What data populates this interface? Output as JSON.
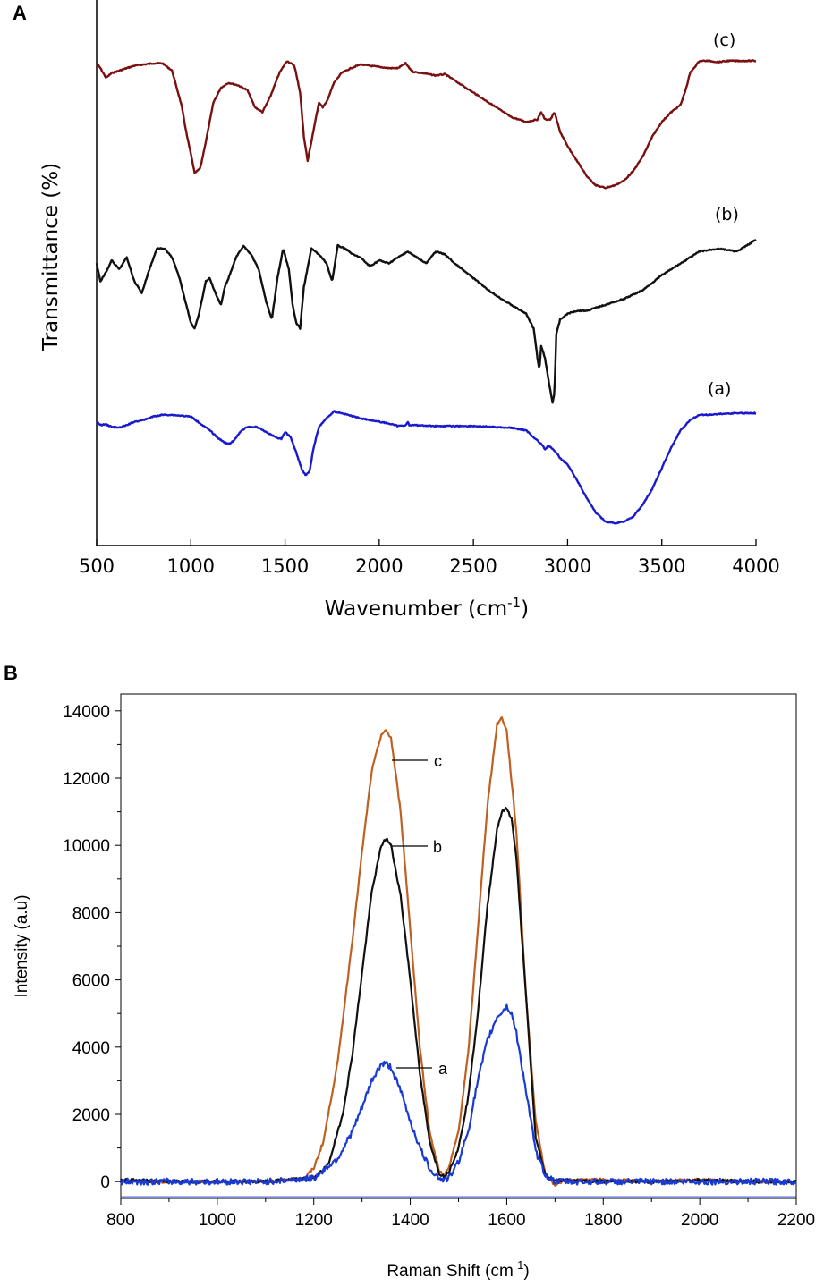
{
  "chart_data": [
    {
      "type": "line",
      "panel_label": "A",
      "xlabel": "Wavenumber (cm",
      "xlabel_sup": "-1",
      "xlabel_end": ")",
      "ylabel": "Transmittance (%)",
      "xlim": [
        500,
        4000
      ],
      "xticks": [
        500,
        1000,
        1500,
        2000,
        2500,
        3000,
        3500,
        4000
      ],
      "yticks_shown": false,
      "grid": false,
      "series": [
        {
          "name": "(c)",
          "color": "#7a1010",
          "x": [
            500,
            520,
            550,
            580,
            620,
            660,
            700,
            750,
            800,
            850,
            900,
            950,
            980,
            1000,
            1020,
            1050,
            1080,
            1120,
            1160,
            1200,
            1250,
            1300,
            1340,
            1380,
            1420,
            1470,
            1510,
            1550,
            1580,
            1600,
            1620,
            1650,
            1680,
            1700,
            1720,
            1760,
            1800,
            1850,
            1900,
            1950,
            2000,
            2050,
            2100,
            2140,
            2160,
            2180,
            2230,
            2300,
            2350,
            2400,
            2500,
            2600,
            2700,
            2780,
            2840,
            2860,
            2880,
            2910,
            2930,
            2960,
            3000,
            3050,
            3100,
            3150,
            3200,
            3250,
            3300,
            3350,
            3400,
            3450,
            3500,
            3550,
            3600,
            3630,
            3650,
            3700,
            3750,
            3800,
            3850,
            3900,
            4000
          ],
          "y": [
            90,
            88,
            84,
            86,
            87,
            88,
            89,
            89.5,
            90,
            90,
            87,
            73,
            60,
            53,
            45,
            47,
            58,
            74,
            80,
            82,
            81,
            79,
            72,
            70,
            76,
            86,
            91,
            89,
            78,
            60,
            50,
            62,
            74,
            72,
            74,
            82,
            86,
            88,
            89.5,
            89,
            88.5,
            88,
            88,
            90,
            88,
            86.5,
            86,
            85,
            85.5,
            83,
            78,
            73,
            68,
            66,
            67,
            70,
            67,
            67,
            70,
            62,
            56,
            50,
            44,
            40,
            39,
            40,
            42,
            46,
            52,
            60,
            66,
            70,
            73,
            80,
            86,
            91,
            91,
            90.5,
            91,
            91,
            91
          ]
        },
        {
          "name": "(b)",
          "color": "#111111",
          "x": [
            500,
            520,
            550,
            580,
            620,
            660,
            700,
            740,
            780,
            820,
            860,
            900,
            940,
            980,
            1000,
            1020,
            1040,
            1060,
            1080,
            1100,
            1130,
            1160,
            1180,
            1200,
            1240,
            1280,
            1320,
            1360,
            1400,
            1430,
            1460,
            1490,
            1520,
            1540,
            1560,
            1580,
            1600,
            1640,
            1680,
            1720,
            1750,
            1780,
            1820,
            1860,
            1900,
            1950,
            2000,
            2050,
            2100,
            2150,
            2200,
            2250,
            2300,
            2350,
            2400,
            2500,
            2600,
            2700,
            2780,
            2820,
            2840,
            2850,
            2860,
            2880,
            2900,
            2920,
            2930,
            2940,
            2960,
            2980,
            3000,
            3050,
            3100,
            3150,
            3200,
            3300,
            3400,
            3500,
            3600,
            3700,
            3800,
            3900,
            4000
          ],
          "y": [
            50,
            44,
            47,
            51,
            48,
            52,
            44,
            40,
            48,
            55,
            55,
            52,
            45,
            35,
            30,
            28,
            32,
            38,
            44,
            45,
            40,
            36,
            42,
            45,
            52,
            56,
            53,
            48,
            37,
            31,
            45,
            55,
            48,
            36,
            30,
            28,
            42,
            55,
            53,
            50,
            44,
            56,
            55,
            53,
            52,
            49,
            51,
            50,
            52,
            54,
            52,
            50,
            54,
            53,
            50,
            45,
            40,
            36,
            33,
            28,
            18,
            14,
            22,
            18,
            10,
            3,
            6,
            26,
            31,
            32,
            33,
            34,
            34,
            35,
            36,
            38,
            41,
            46,
            50,
            54,
            55,
            54,
            58
          ]
        },
        {
          "name": "(a)",
          "color": "#1a1acc",
          "x": [
            500,
            520,
            550,
            580,
            620,
            660,
            700,
            750,
            800,
            850,
            900,
            950,
            1000,
            1050,
            1100,
            1150,
            1180,
            1200,
            1230,
            1260,
            1300,
            1350,
            1400,
            1450,
            1480,
            1500,
            1530,
            1560,
            1590,
            1610,
            1630,
            1650,
            1680,
            1720,
            1760,
            1800,
            1850,
            1900,
            2000,
            2050,
            2100,
            2140,
            2150,
            2160,
            2200,
            2300,
            2400,
            2500,
            2600,
            2700,
            2780,
            2840,
            2860,
            2880,
            2900,
            2940,
            2960,
            3000,
            3050,
            3100,
            3150,
            3200,
            3250,
            3300,
            3350,
            3400,
            3450,
            3500,
            3550,
            3600,
            3650,
            3700,
            3750,
            3800,
            3900,
            4000
          ],
          "y": [
            68,
            66,
            66.5,
            65,
            64.5,
            66,
            68,
            69,
            71,
            72,
            72,
            71.5,
            71,
            67,
            63,
            58,
            56,
            55,
            57,
            62,
            65,
            65,
            62,
            59,
            58,
            62,
            59,
            50,
            40,
            37,
            39,
            52,
            65,
            70,
            74,
            73,
            71.5,
            70,
            68,
            67,
            65.5,
            66,
            68,
            66,
            66,
            65.5,
            65.5,
            65.5,
            65,
            64.5,
            63,
            57,
            55,
            52,
            54,
            50,
            47,
            43,
            34,
            24,
            15,
            10,
            9,
            10,
            13,
            20,
            29,
            41,
            53,
            63,
            69,
            72,
            72,
            72.5,
            73,
            73
          ]
        }
      ]
    },
    {
      "type": "line",
      "panel_label": "B",
      "xlabel": "Raman Shift (cm",
      "xlabel_sup": "-1",
      "xlabel_end": ")",
      "ylabel": "Intensity (a.u)",
      "xlim": [
        800,
        2200
      ],
      "ylim": [
        -500,
        14500
      ],
      "xticks": [
        800,
        1000,
        1200,
        1400,
        1600,
        1800,
        2000,
        2200
      ],
      "yticks": [
        0,
        2000,
        4000,
        6000,
        8000,
        10000,
        12000,
        14000
      ],
      "grid": false,
      "series": [
        {
          "name": "c",
          "color": "#c06020",
          "x": [
            800,
            900,
            1000,
            1100,
            1180,
            1200,
            1220,
            1250,
            1280,
            1300,
            1320,
            1340,
            1350,
            1360,
            1380,
            1400,
            1420,
            1440,
            1460,
            1470,
            1480,
            1500,
            1520,
            1540,
            1560,
            1580,
            1590,
            1600,
            1620,
            1640,
            1660,
            1680,
            1700,
            1720,
            1800,
            1900,
            2000,
            2100,
            2200
          ],
          "y": [
            0,
            0,
            0,
            0,
            100,
            400,
            1200,
            3600,
            7200,
            9800,
            12200,
            13300,
            13400,
            13200,
            11000,
            7500,
            4000,
            1500,
            300,
            200,
            400,
            1500,
            3800,
            7500,
            11200,
            13600,
            13800,
            13400,
            10400,
            5500,
            1800,
            200,
            -100,
            50,
            50,
            0,
            50,
            0,
            0
          ]
        },
        {
          "name": "b",
          "color": "#111111",
          "x": [
            800,
            900,
            1000,
            1100,
            1200,
            1230,
            1260,
            1280,
            1300,
            1320,
            1340,
            1350,
            1360,
            1380,
            1400,
            1420,
            1440,
            1460,
            1470,
            1480,
            1500,
            1520,
            1540,
            1560,
            1580,
            1590,
            1600,
            1610,
            1620,
            1640,
            1660,
            1680,
            1700,
            1800,
            1900,
            2000,
            2100,
            2200
          ],
          "y": [
            50,
            0,
            0,
            0,
            100,
            500,
            2000,
            3800,
            6200,
            8600,
            10000,
            10200,
            10000,
            8500,
            6000,
            3200,
            1200,
            250,
            150,
            300,
            1000,
            2500,
            5000,
            8200,
            10500,
            11000,
            11100,
            10800,
            9600,
            5500,
            1300,
            200,
            50,
            0,
            0,
            50,
            0,
            0
          ]
        },
        {
          "name": "a",
          "color": "#1a3ad4",
          "x": [
            800,
            900,
            1000,
            1100,
            1200,
            1250,
            1280,
            1300,
            1320,
            1340,
            1350,
            1360,
            1380,
            1400,
            1420,
            1440,
            1460,
            1470,
            1480,
            1500,
            1520,
            1540,
            1560,
            1580,
            1600,
            1610,
            1620,
            1640,
            1660,
            1680,
            1700,
            1800,
            1900,
            2000,
            2100,
            2200
          ],
          "y": [
            0,
            0,
            0,
            0,
            100,
            700,
            1500,
            2200,
            3000,
            3500,
            3500,
            3400,
            2700,
            1800,
            1000,
            400,
            100,
            50,
            100,
            600,
            1500,
            3000,
            4200,
            4900,
            5200,
            5000,
            4400,
            2700,
            900,
            200,
            0,
            0,
            0,
            0,
            0,
            0
          ]
        }
      ]
    }
  ],
  "annotations": {
    "panelA_labels": [
      "(c)",
      "(b)",
      "(a)"
    ],
    "panelB_labels": [
      "c",
      "b",
      "a"
    ]
  }
}
